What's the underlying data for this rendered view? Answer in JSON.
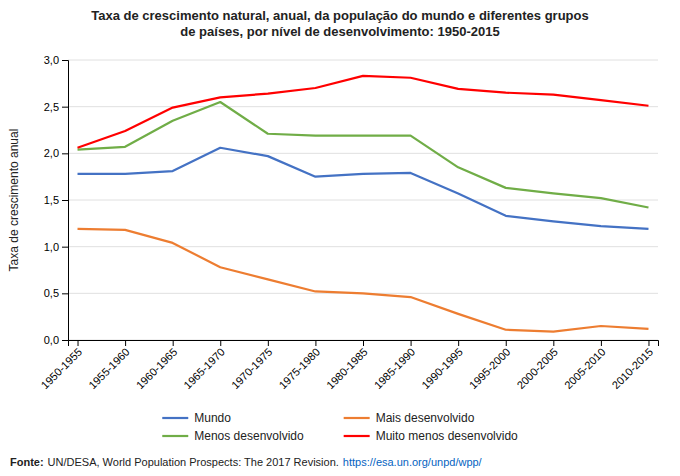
{
  "chart_data": {
    "type": "line",
    "title": "Taxa de crescimento natural, anual, da população do mundo e diferentes grupos\nde países, por nível de desenvolvimento: 1950-2015",
    "y_label": "Taxa de crescimento anual",
    "categories": [
      "1950-1955",
      "1955-1960",
      "1960-1965",
      "1965-1970",
      "1970-1975",
      "1975-1980",
      "1980-1985",
      "1985-1990",
      "1990-1995",
      "1995-2000",
      "2000-2005",
      "2005-2010",
      "2010-2015"
    ],
    "series": [
      {
        "name": "Mundo",
        "color": "#4472C4",
        "values": [
          1.78,
          1.78,
          1.81,
          2.06,
          1.97,
          1.75,
          1.78,
          1.79,
          1.57,
          1.33,
          1.27,
          1.22,
          1.19
        ]
      },
      {
        "name": "Mais desenvolvido",
        "color": "#ED7D31",
        "values": [
          1.19,
          1.18,
          1.04,
          0.78,
          0.65,
          0.52,
          0.5,
          0.46,
          0.28,
          0.11,
          0.09,
          0.15,
          0.12
        ]
      },
      {
        "name": "Menos desenvolvido",
        "color": "#70AD47",
        "values": [
          2.04,
          2.07,
          2.35,
          2.55,
          2.21,
          2.19,
          2.19,
          2.19,
          1.85,
          1.63,
          1.57,
          1.52,
          1.42
        ]
      },
      {
        "name": "Muito menos desenvolvido",
        "color": "#FF0000",
        "values": [
          2.06,
          2.24,
          2.49,
          2.6,
          2.64,
          2.7,
          2.83,
          2.81,
          2.69,
          2.65,
          2.63,
          2.57,
          2.51
        ]
      }
    ],
    "ylim": [
      0.0,
      3.0
    ],
    "yticks": [
      {
        "value": 0.0,
        "label": "0,0"
      },
      {
        "value": 0.5,
        "label": "0,5"
      },
      {
        "value": 1.0,
        "label": "1,0"
      },
      {
        "value": 1.5,
        "label": "1,5"
      },
      {
        "value": 2.0,
        "label": "2,0"
      },
      {
        "value": 2.5,
        "label": "2,5"
      },
      {
        "value": 3.0,
        "label": "3,0"
      }
    ],
    "grid": true,
    "legend": "bottom",
    "source": [
      "Fonte:",
      "UN/DESA, World Population Prospects: The 2017 Revision.",
      "https://esa.un.org/unpd/wpp/"
    ]
  }
}
